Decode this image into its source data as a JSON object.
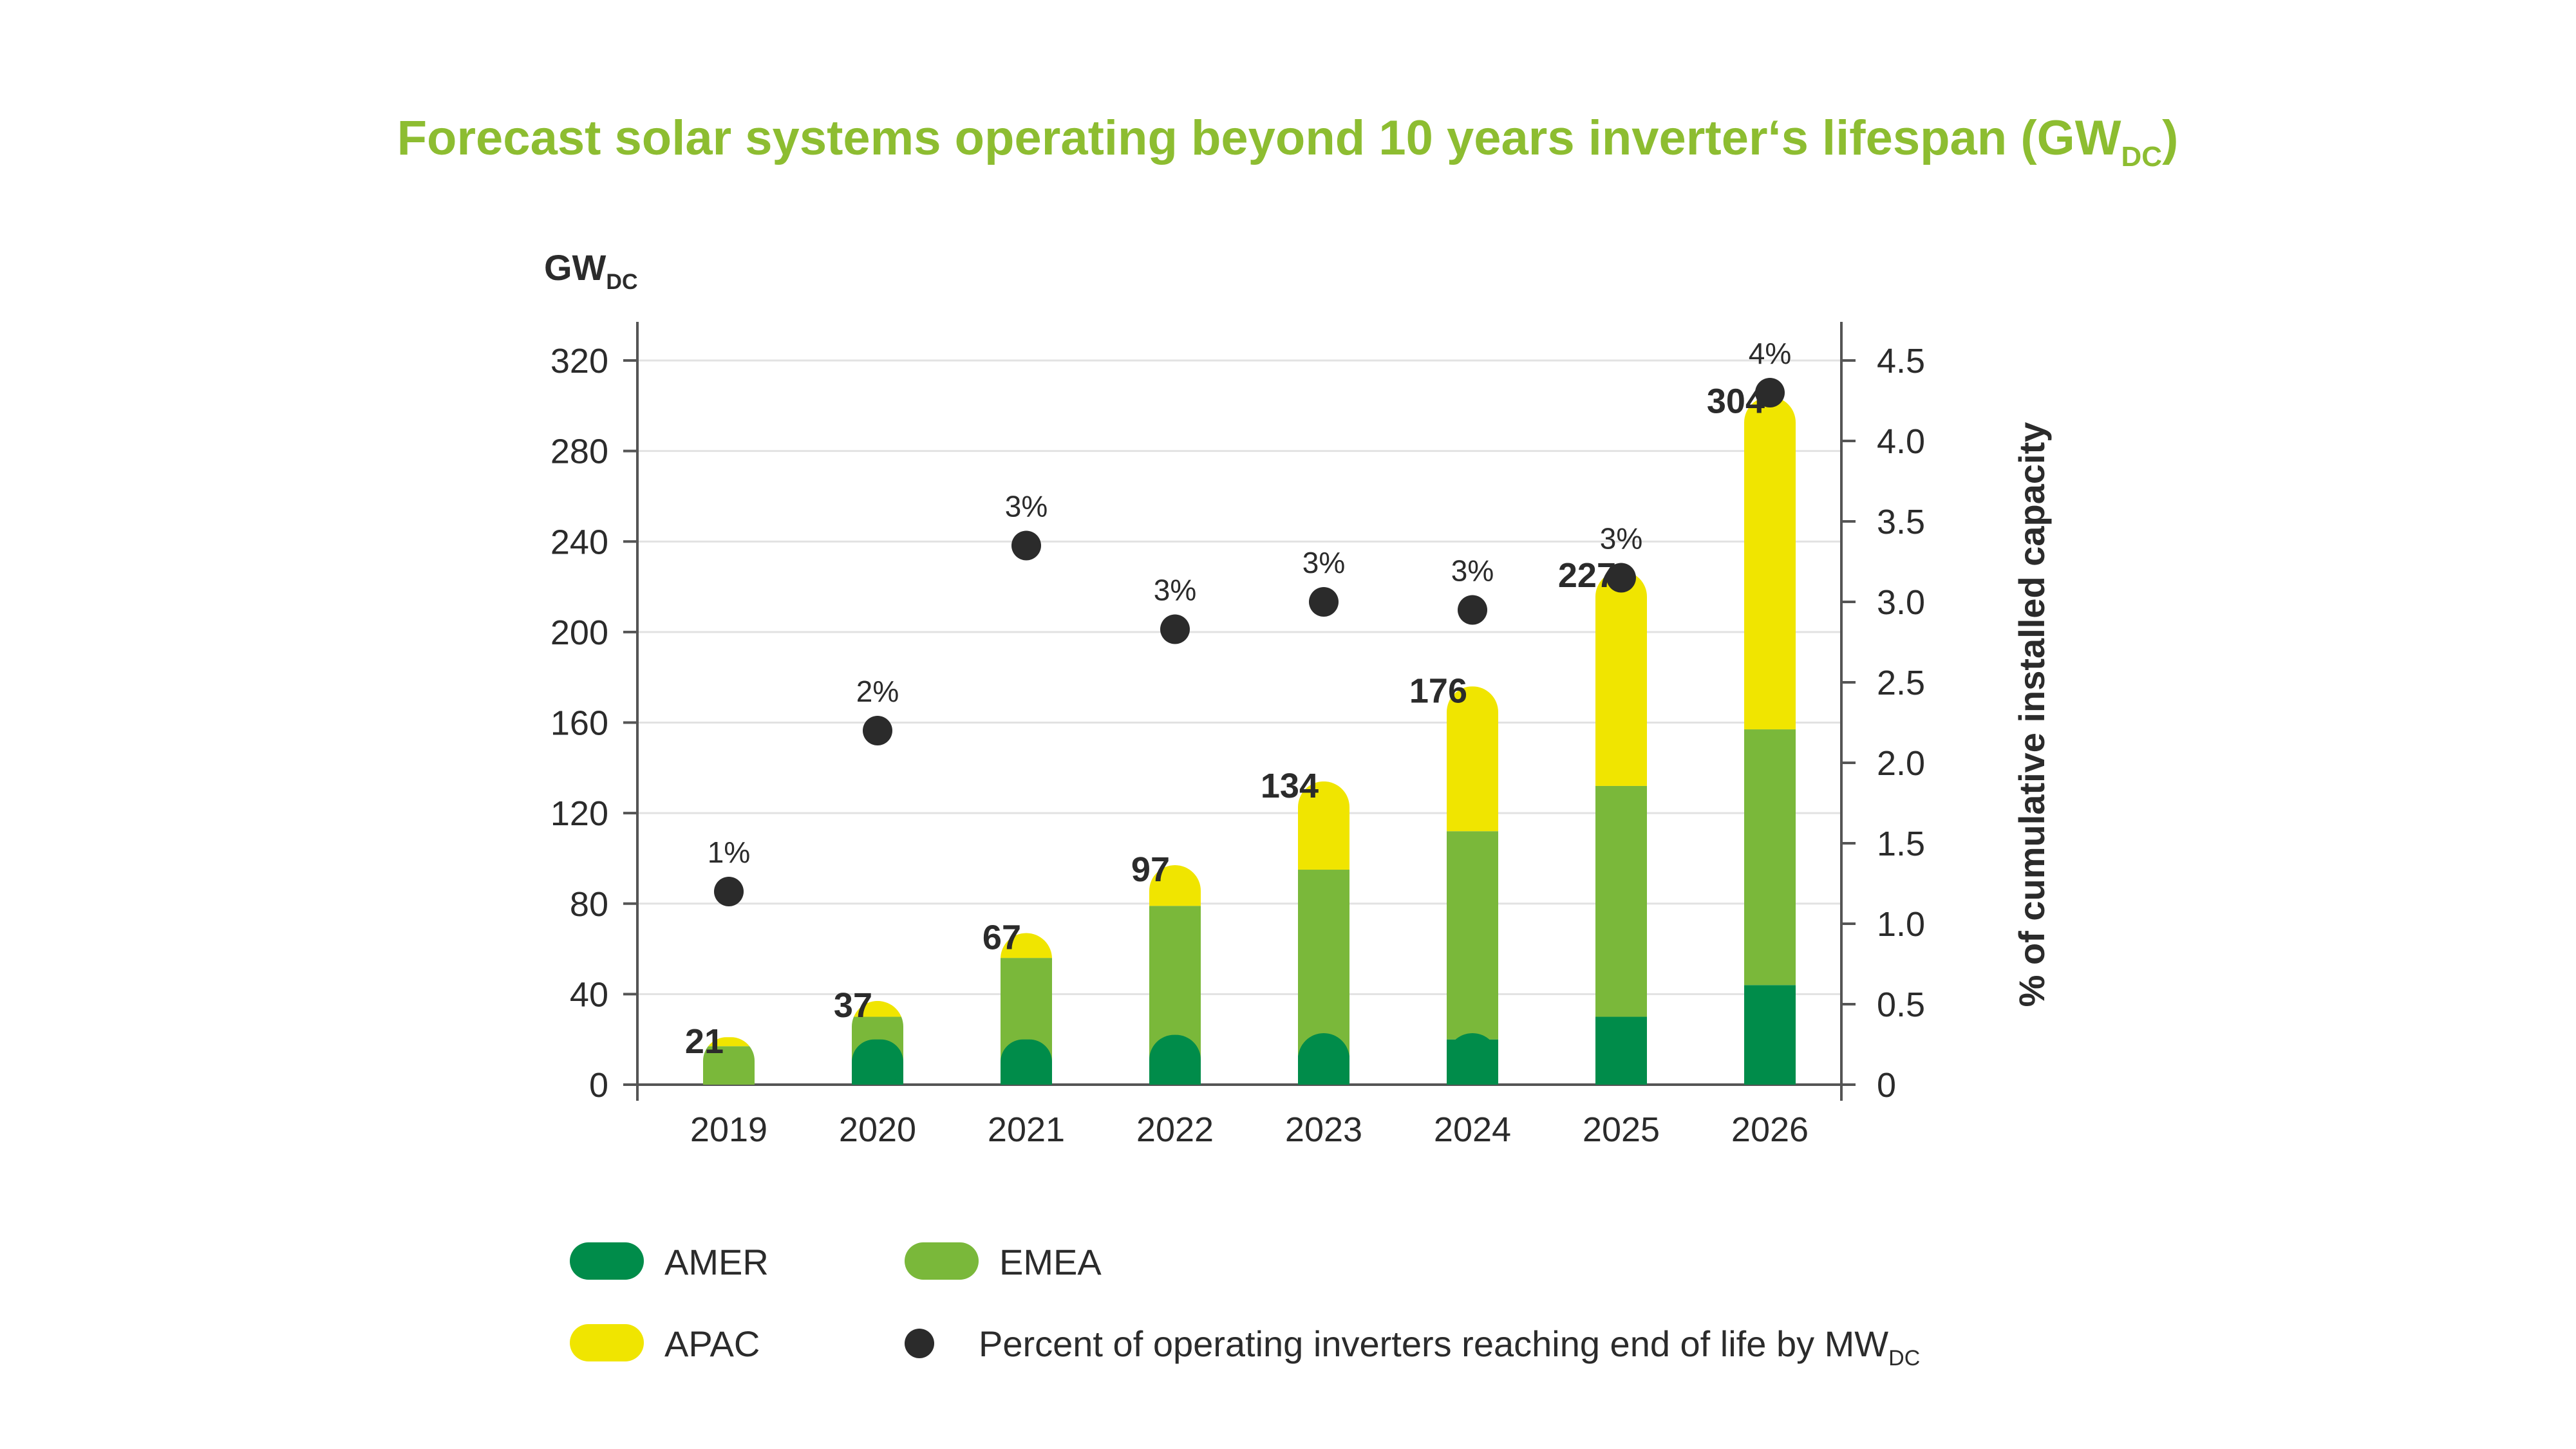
{
  "chart_data": {
    "type": "bar",
    "title": "Forecast solar systems operating beyond 10 years inverter‘s lifespan (GW",
    "title_sub": "DC",
    "title_end": ")",
    "ylabel": "GW",
    "ylabel_sub": "DC",
    "y2label": "% of cumulative installed capacity",
    "ylim": [
      0,
      320
    ],
    "y2lim": [
      0,
      4.5
    ],
    "yticks": [
      "0",
      "40",
      "80",
      "120",
      "160",
      "200",
      "240",
      "280",
      "320"
    ],
    "y2ticks": [
      "0",
      "0.5",
      "1.0",
      "1.5",
      "2.0",
      "2.5",
      "3.0",
      "3.5",
      "4.0",
      "4.5"
    ],
    "categories": [
      "2019",
      "2020",
      "2021",
      "2022",
      "2023",
      "2024",
      "2025",
      "2026"
    ],
    "series": [
      {
        "name": "AMER",
        "color": "#008c4a",
        "values": [
          0,
          10,
          10,
          11,
          13,
          20,
          30,
          44
        ]
      },
      {
        "name": "EMEA",
        "color": "#7ab83a",
        "values": [
          17,
          20,
          46,
          68,
          82,
          92,
          102,
          113
        ]
      },
      {
        "name": "APAC",
        "color": "#f0e500",
        "values": [
          4,
          7,
          11,
          18,
          39,
          64,
          95,
          147
        ]
      }
    ],
    "totals": [
      "21",
      "37",
      "67",
      "97",
      "134",
      "176",
      "227",
      "304"
    ],
    "percent_series": {
      "name": "Percent of operating inverters reaching end of life by MW",
      "name_sub": "DC",
      "color": "#2b2b2b",
      "values": [
        1.2,
        2.2,
        3.35,
        2.83,
        3.0,
        2.95,
        3.15,
        4.3
      ],
      "labels": [
        "1%",
        "2%",
        "3%",
        "3%",
        "3%",
        "3%",
        "3%",
        "4%"
      ]
    },
    "legend": {
      "position": "bottom",
      "items": [
        "AMER",
        "EMEA",
        "APAC",
        "Percent of operating inverters reaching end of life by MW"
      ]
    },
    "grid": true
  }
}
